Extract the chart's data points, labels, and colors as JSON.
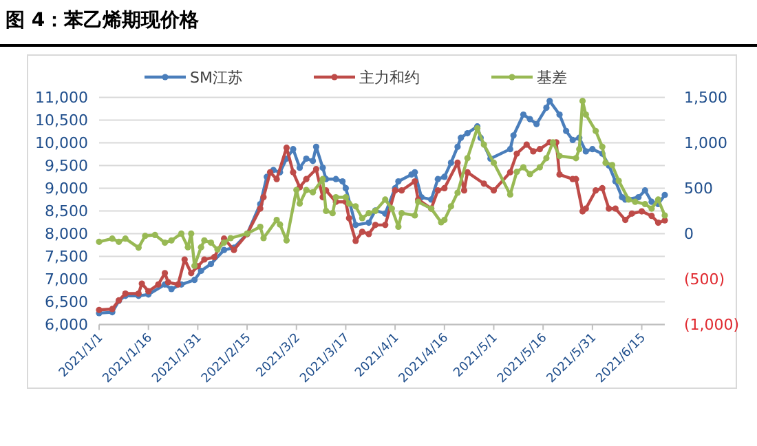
{
  "chart_data": {
    "type": "line",
    "title": "图 4：苯乙烯期现价格",
    "marker": "circle",
    "line_style": "solid",
    "grid": "y",
    "legend": "top",
    "xlim": [
      "2021-01-01",
      "2021-06-22"
    ],
    "xticks": [
      {
        "value": "2021-01-01",
        "label": "2021/1/1"
      },
      {
        "value": "2021-01-16",
        "label": "2021/1/16"
      },
      {
        "value": "2021-01-31",
        "label": "2021/1/31"
      },
      {
        "value": "2021-02-15",
        "label": "2021/2/15"
      },
      {
        "value": "2021-03-02",
        "label": "2021/3/2"
      },
      {
        "value": "2021-03-17",
        "label": "2021/3/17"
      },
      {
        "value": "2021-04-01",
        "label": "2021/4/1"
      },
      {
        "value": "2021-04-16",
        "label": "2021/4/16"
      },
      {
        "value": "2021-05-01",
        "label": "2021/5/1"
      },
      {
        "value": "2021-05-16",
        "label": "2021/5/16"
      },
      {
        "value": "2021-05-31",
        "label": "2021/5/31"
      },
      {
        "value": "2021-06-15",
        "label": "2021/6/15"
      }
    ],
    "ylim": [
      6000,
      11000
    ],
    "yticks": [
      {
        "value": 6000,
        "label": "6,000"
      },
      {
        "value": 6500,
        "label": "6,500"
      },
      {
        "value": 7000,
        "label": "7,000"
      },
      {
        "value": 7500,
        "label": "7,500"
      },
      {
        "value": 8000,
        "label": "8,000"
      },
      {
        "value": 8500,
        "label": "8,500"
      },
      {
        "value": 9000,
        "label": "9,000"
      },
      {
        "value": 9500,
        "label": "9,500"
      },
      {
        "value": 10000,
        "label": "10,000"
      },
      {
        "value": 10500,
        "label": "10,500"
      },
      {
        "value": 11000,
        "label": "11,000"
      }
    ],
    "y2lim": [
      -1000,
      1500
    ],
    "y2ticks": [
      {
        "value": -1000,
        "label": "(1,000)"
      },
      {
        "value": -500,
        "label": "(500)"
      },
      0,
      500,
      {
        "value": 1000,
        "label": "1,000"
      },
      {
        "value": 1500,
        "label": "1,500"
      }
    ],
    "series": [
      {
        "name": "SM江苏",
        "color": "#4a7ebb",
        "x": [
          "2021-01-01",
          "2021-01-05",
          "2021-01-07",
          "2021-01-09",
          "2021-01-13",
          "2021-01-16",
          "2021-01-21",
          "2021-01-23",
          "2021-01-26",
          "2021-01-30",
          "2021-02-01",
          "2021-02-04",
          "2021-02-08",
          "2021-02-11",
          "2021-02-15",
          "2021-02-19",
          "2021-02-21",
          "2021-02-23",
          "2021-02-25",
          "2021-02-27",
          "2021-03-01",
          "2021-03-03",
          "2021-03-05",
          "2021-03-07",
          "2021-03-08",
          "2021-03-10",
          "2021-03-11",
          "2021-03-14",
          "2021-03-16",
          "2021-03-17",
          "2021-03-20",
          "2021-03-24",
          "2021-03-26",
          "2021-03-29",
          "2021-04-01",
          "2021-04-02",
          "2021-04-06",
          "2021-04-07",
          "2021-04-09",
          "2021-04-12",
          "2021-04-14",
          "2021-04-16",
          "2021-04-18",
          "2021-04-20",
          "2021-04-21",
          "2021-04-23",
          "2021-04-26",
          "2021-04-27",
          "2021-04-30",
          "2021-05-06",
          "2021-05-07",
          "2021-05-10",
          "2021-05-12",
          "2021-05-14",
          "2021-05-17",
          "2021-05-18",
          "2021-05-21",
          "2021-05-23",
          "2021-05-25",
          "2021-05-27",
          "2021-05-29",
          "2021-05-31",
          "2021-06-03",
          "2021-06-05",
          "2021-06-07",
          "2021-06-09",
          "2021-06-10",
          "2021-06-14",
          "2021-06-16",
          "2021-06-18",
          "2021-06-20",
          "2021-06-22"
        ],
        "values": [
          6250,
          6270,
          6520,
          6630,
          6630,
          6660,
          6880,
          6780,
          6880,
          6980,
          7180,
          7330,
          7640,
          7690,
          7990,
          8650,
          9250,
          9400,
          9350,
          9650,
          9860,
          9450,
          9650,
          9600,
          9910,
          9450,
          9200,
          9200,
          9150,
          9000,
          8190,
          8240,
          8510,
          8440,
          9000,
          9150,
          9300,
          9350,
          8800,
          8750,
          9200,
          9250,
          9560,
          9910,
          10110,
          10210,
          10360,
          10110,
          9650,
          9860,
          10160,
          10620,
          10520,
          10410,
          10770,
          10920,
          10620,
          10260,
          10060,
          10110,
          9810,
          9860,
          9760,
          9500,
          9150,
          8800,
          8750,
          8800,
          8950,
          8700,
          8650,
          8850
        ]
      },
      {
        "name": "主力和约",
        "color": "#be4b48",
        "x": [
          "2021-01-01",
          "2021-01-05",
          "2021-01-07",
          "2021-01-09",
          "2021-01-13",
          "2021-01-14",
          "2021-01-16",
          "2021-01-19",
          "2021-01-21",
          "2021-01-22",
          "2021-01-25",
          "2021-01-27",
          "2021-01-29",
          "2021-01-31",
          "2021-02-02",
          "2021-02-05",
          "2021-02-08",
          "2021-02-11",
          "2021-02-15",
          "2021-02-19",
          "2021-02-20",
          "2021-02-22",
          "2021-02-24",
          "2021-02-27",
          "2021-03-01",
          "2021-03-03",
          "2021-03-05",
          "2021-03-08",
          "2021-03-10",
          "2021-03-11",
          "2021-03-14",
          "2021-03-17",
          "2021-03-18",
          "2021-03-20",
          "2021-03-22",
          "2021-03-24",
          "2021-03-26",
          "2021-03-29",
          "2021-04-01",
          "2021-04-03",
          "2021-04-07",
          "2021-04-08",
          "2021-04-12",
          "2021-04-14",
          "2021-04-16",
          "2021-04-20",
          "2021-04-22",
          "2021-04-23",
          "2021-04-28",
          "2021-05-01",
          "2021-05-06",
          "2021-05-08",
          "2021-05-11",
          "2021-05-13",
          "2021-05-15",
          "2021-05-18",
          "2021-05-20",
          "2021-05-21",
          "2021-05-25",
          "2021-05-26",
          "2021-05-28",
          "2021-05-29",
          "2021-06-01",
          "2021-06-03",
          "2021-06-05",
          "2021-06-07",
          "2021-06-10",
          "2021-06-12",
          "2021-06-15",
          "2021-06-18",
          "2021-06-20",
          "2021-06-22"
        ],
        "values": [
          6320,
          6340,
          6530,
          6680,
          6680,
          6900,
          6730,
          6880,
          7130,
          6930,
          6880,
          7430,
          7130,
          7280,
          7430,
          7480,
          7890,
          7640,
          7990,
          8550,
          8800,
          9350,
          9200,
          9890,
          9350,
          9020,
          9200,
          9420,
          8800,
          8950,
          8700,
          8700,
          8340,
          7840,
          8040,
          7990,
          8190,
          8190,
          8950,
          8950,
          9150,
          8750,
          8550,
          8950,
          9000,
          9560,
          8950,
          9350,
          9100,
          8950,
          9350,
          9760,
          9960,
          9810,
          9860,
          10010,
          10010,
          9300,
          9200,
          9200,
          8490,
          8550,
          8950,
          9000,
          8550,
          8550,
          8300,
          8440,
          8490,
          8390,
          8240,
          8290
        ]
      },
      {
        "name": "基差",
        "color": "#98b954",
        "axis": "y2",
        "x": [
          "2021-01-01",
          "2021-01-05",
          "2021-01-07",
          "2021-01-09",
          "2021-01-13",
          "2021-01-15",
          "2021-01-18",
          "2021-01-21",
          "2021-01-23",
          "2021-01-26",
          "2021-01-28",
          "2021-01-29",
          "2021-01-30",
          "2021-02-01",
          "2021-02-02",
          "2021-02-04",
          "2021-02-06",
          "2021-02-08",
          "2021-02-10",
          "2021-02-15",
          "2021-02-19",
          "2021-02-20",
          "2021-02-24",
          "2021-02-25",
          "2021-02-27",
          "2021-03-02",
          "2021-03-03",
          "2021-03-05",
          "2021-03-07",
          "2021-03-10",
          "2021-03-11",
          "2021-03-13",
          "2021-03-14",
          "2021-03-17",
          "2021-03-18",
          "2021-03-20",
          "2021-03-22",
          "2021-03-24",
          "2021-03-26",
          "2021-03-29",
          "2021-03-31",
          "2021-04-02",
          "2021-04-03",
          "2021-04-07",
          "2021-04-08",
          "2021-04-12",
          "2021-04-15",
          "2021-04-16",
          "2021-04-18",
          "2021-04-20",
          "2021-04-23",
          "2021-04-26",
          "2021-04-28",
          "2021-05-01",
          "2021-05-06",
          "2021-05-08",
          "2021-05-10",
          "2021-05-12",
          "2021-05-15",
          "2021-05-17",
          "2021-05-19",
          "2021-05-21",
          "2021-05-26",
          "2021-05-27",
          "2021-05-28",
          "2021-05-29",
          "2021-06-01",
          "2021-06-03",
          "2021-06-04",
          "2021-06-06",
          "2021-06-08",
          "2021-06-11",
          "2021-06-13",
          "2021-06-16",
          "2021-06-18",
          "2021-06-20",
          "2021-06-22"
        ],
        "values": [
          -90,
          -55,
          -90,
          -55,
          -155,
          -25,
          -15,
          -100,
          -75,
          0,
          -150,
          0,
          -355,
          -150,
          -75,
          -100,
          -175,
          -100,
          -50,
          0,
          75,
          -50,
          150,
          100,
          -75,
          480,
          330,
          480,
          455,
          600,
          250,
          225,
          400,
          400,
          330,
          300,
          170,
          225,
          250,
          375,
          275,
          75,
          225,
          200,
          350,
          275,
          125,
          150,
          300,
          450,
          830,
          1160,
          980,
          780,
          430,
          680,
          730,
          655,
          730,
          830,
          1005,
          855,
          830,
          930,
          1460,
          1310,
          1130,
          955,
          780,
          755,
          580,
          375,
          350,
          325,
          275,
          375,
          200
        ]
      }
    ]
  }
}
